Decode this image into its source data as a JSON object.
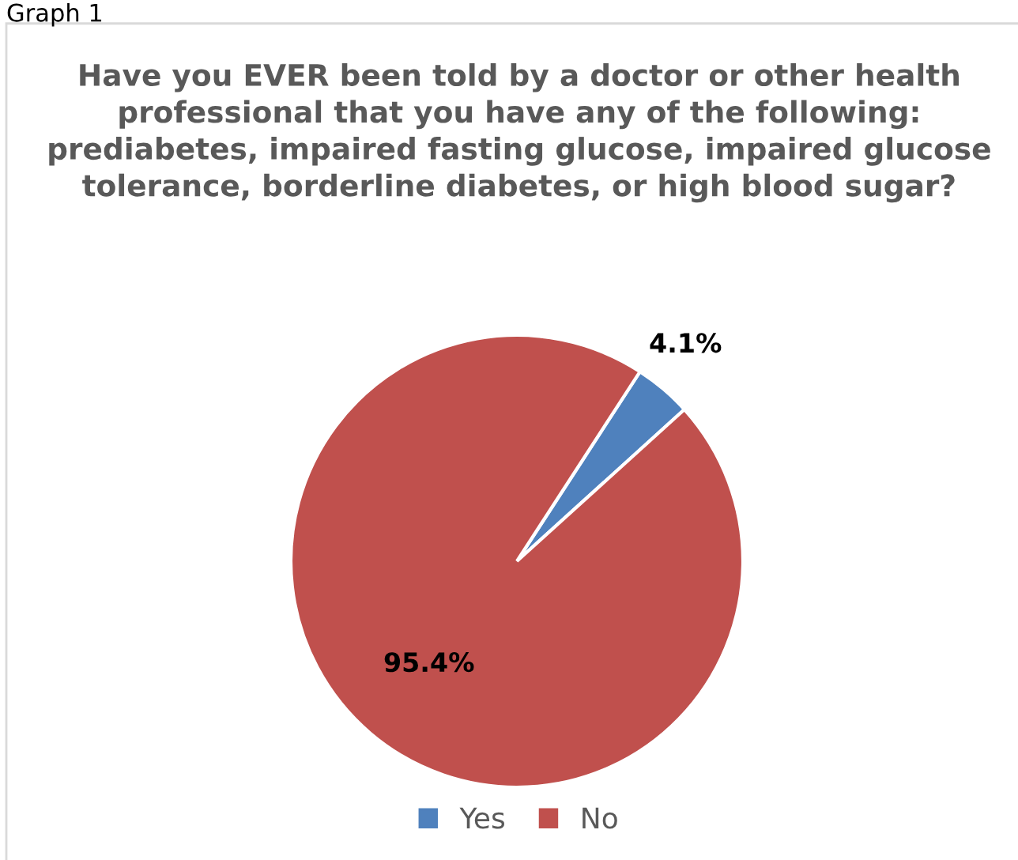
{
  "chart_data": {
    "type": "pie",
    "title": "Have you EVER been told by a doctor or other health professional that you have any of the following: prediabetes, impaired fasting glucose, impaired glucose tolerance, borderline diabetes, or high blood sugar?",
    "categories": [
      "Yes",
      "No"
    ],
    "values": [
      4.1,
      95.4
    ],
    "colors": [
      "#4f81bd",
      "#c0504d"
    ],
    "value_labels": [
      "4.1%",
      "95.4%"
    ],
    "legend": "bottom",
    "annotations": [
      "Graph 1"
    ]
  }
}
